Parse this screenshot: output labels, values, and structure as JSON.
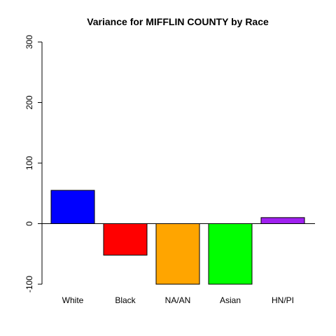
{
  "chart_data": {
    "type": "bar",
    "title": "Variance for MIFFLIN COUNTY by Race",
    "xlabel": "",
    "ylabel": "",
    "categories": [
      "White",
      "Black",
      "NA/AN",
      "Asian",
      "HN/PI"
    ],
    "values": [
      55,
      -52,
      -100,
      -100,
      10
    ],
    "colors": [
      "#0000ff",
      "#ff0000",
      "#ffa500",
      "#00ff00",
      "#a020f0"
    ],
    "ylim": [
      -100,
      300
    ],
    "yticks": [
      -100,
      0,
      100,
      200,
      300
    ],
    "ytick_labels": [
      "-100",
      "0",
      "100",
      "200",
      "300"
    ],
    "zero_line": true,
    "grid": false,
    "legend": "none"
  }
}
